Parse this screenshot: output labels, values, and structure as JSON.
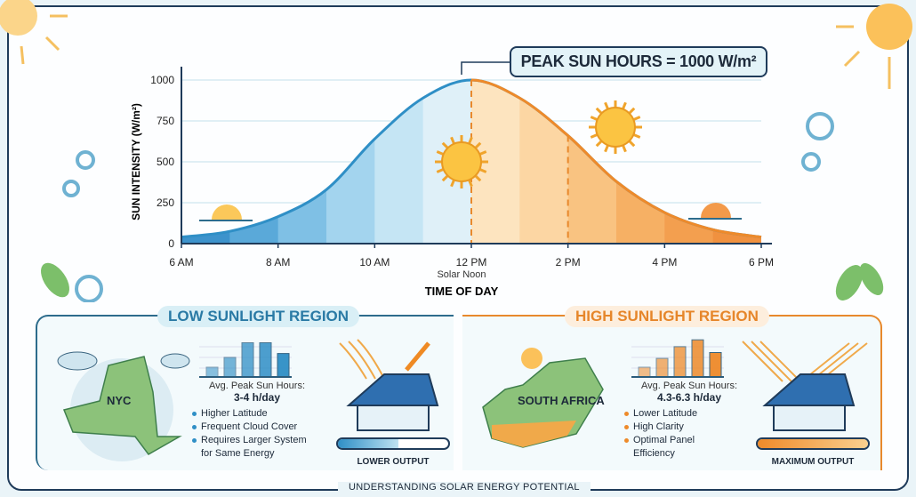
{
  "callout": "PEAK SUN HOURS = 1000 W/m²",
  "chart_data": {
    "type": "area",
    "xlabel": "TIME OF DAY",
    "ylabel": "SUN INTENSITY (W/m²)",
    "x_ticks": [
      "6 AM",
      "8 AM",
      "10 AM",
      "12 PM",
      "2 PM",
      "4 PM",
      "6 PM"
    ],
    "x_tick_note": "Solar Noon",
    "y_ticks": [
      0,
      250,
      500,
      750,
      1000
    ],
    "ylim": [
      0,
      1000
    ],
    "x_hours": [
      6,
      7,
      8,
      9,
      10,
      11,
      12,
      13,
      14,
      15,
      16,
      17,
      18
    ],
    "values": [
      40,
      75,
      165,
      330,
      640,
      890,
      1000,
      890,
      660,
      380,
      190,
      85,
      40
    ],
    "colors": {
      "morning": "#2f8fc6",
      "afternoon": "#ee8a2a"
    },
    "grid": true
  },
  "low": {
    "title": "LOW SUNLIGHT REGION",
    "map_label": "NYC",
    "stat_label": "Avg. Peak Sun Hours:",
    "stat_value": "3-4 h/day",
    "bullets": [
      "Higher Latitude",
      "Frequent Cloud Cover",
      "Requires Larger System",
      "for Same Energy"
    ],
    "bars": [
      1,
      2,
      3.5,
      3.5,
      2.4
    ],
    "output_label": "LOWER OUTPUT",
    "output_level": 0.55,
    "color": "#2f8fc6"
  },
  "high": {
    "title": "HIGH SUNLIGHT REGION",
    "map_label": "SOUTH AFRICA",
    "stat_label": "Avg. Peak Sun Hours:",
    "stat_value": "4.3-6.3 h/day",
    "bullets": [
      "Lower Latitude",
      "High Clarity",
      "Optimal Panel",
      "Efficiency"
    ],
    "bars": [
      1,
      1.9,
      3.1,
      3.8,
      2.5
    ],
    "output_label": "MAXIMUM OUTPUT",
    "output_level": 1.0,
    "color": "#ee8a2a"
  },
  "footer": "UNDERSTANDING SOLAR ENERGY POTENTIAL"
}
